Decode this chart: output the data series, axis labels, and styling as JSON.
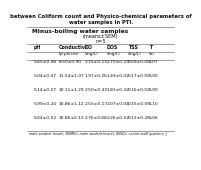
{
  "title_line1": "between Coliform count and Physico-chemical parameters of",
  "title_line2": "water samples in PTI.",
  "section_header": "Minus-boiling water samples",
  "subheader1": "(means±SEM)",
  "subheader2": "n=5",
  "col_headers_row1": [
    "pH",
    "Conductivi",
    "DO",
    "DOS",
    "TSS",
    "T"
  ],
  "col_headers_row2": [
    "",
    "ty(µS/cm)",
    "(mg/L)",
    "(mg/L)",
    "(mg/L)",
    "(m"
  ],
  "rows": [
    [
      "5.65±0.48",
      "8.50±0.90",
      "2.15±0.13",
      "2.70±0.29",
      "0.09±0.05",
      "4.07"
    ],
    [
      "5.04±0.47",
      "11.54±1.07",
      "1.97±0.26",
      "1.49±0.02",
      "0.17±0.00",
      "5.00"
    ],
    [
      "5.14±0.27",
      "10.11±1.29",
      "2.50±0.43",
      "1.81±0.32",
      "0.16±0.02",
      "5.00"
    ],
    [
      "5.99±0.24",
      "10.86±1.12",
      "2.55±0.17",
      "2.07±0.04",
      "0.15±0.05",
      "5.10"
    ],
    [
      "5.64±0.52",
      "10.86±0.13",
      "2.76±0.68",
      "2.26±0.52",
      "0.12±0.26",
      "5.06"
    ]
  ],
  "footer": "male student hostel; NSMH= male student hostel; SSSQ= senior staff quarters; J",
  "bg_color": "#ffffff",
  "text_color": "#111111",
  "line_color": "#555555",
  "title_fontsize": 3.8,
  "section_fontsize": 4.2,
  "sub_fontsize": 3.6,
  "header_fontsize": 3.4,
  "data_fontsize": 3.2,
  "footer_fontsize": 2.4
}
